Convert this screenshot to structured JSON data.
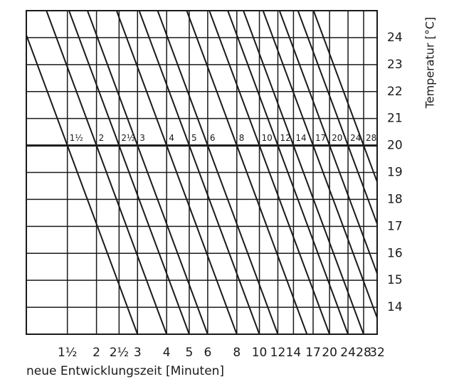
{
  "chart_data": {
    "type": "nomogram",
    "xlabel": "neue Entwicklungszeit [Minuten]",
    "ylabel": "Temperatur [°C]",
    "xscale": "log",
    "xlim": [
      1,
      32
    ],
    "xticks": [
      {
        "value": 1.5,
        "label": "1½"
      },
      2,
      {
        "value": 2.5,
        "label": "2½"
      },
      3,
      4,
      5,
      6,
      8,
      10,
      12,
      14,
      17,
      20,
      24,
      28,
      32
    ],
    "ylim": [
      13,
      25
    ],
    "yticks": [
      14,
      15,
      16,
      17,
      18,
      19,
      20,
      21,
      22,
      23,
      24
    ],
    "reference_temperature": 20,
    "time_factor_per_degree": 1.104,
    "lines": [
      {
        "value": 1.5,
        "label": "1½"
      },
      2,
      {
        "value": 2.5,
        "label": "2½"
      },
      3,
      4,
      5,
      6,
      8,
      10,
      12,
      14,
      17,
      20,
      24,
      28
    ],
    "grid": true,
    "color": "#1a1a1a"
  }
}
